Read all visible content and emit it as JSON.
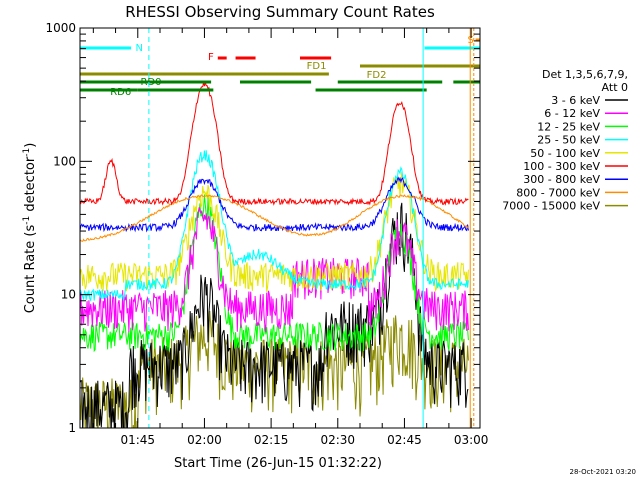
{
  "chart_data": {
    "type": "line",
    "title": "RHESSI Observing Summary Count Rates",
    "xlabel": "Start Time (26-Jun-15 01:32:22)",
    "ylabel_main": "Count Rate (s",
    "ylabel_sup1": "-1",
    "ylabel_mid": " detector",
    "ylabel_sup2": "-1",
    "ylabel_end": ")",
    "y_scale": "log",
    "ylim": [
      1,
      1000
    ],
    "xlim_min": [
      0,
      90
    ],
    "x_ticks": [
      {
        "t": 13,
        "label": "01:45"
      },
      {
        "t": 28,
        "label": "02:00"
      },
      {
        "t": 43,
        "label": "02:15"
      },
      {
        "t": 58,
        "label": "02:30"
      },
      {
        "t": 73,
        "label": "02:45"
      },
      {
        "t": 88,
        "label": "03:00"
      }
    ],
    "y_ticks": [
      {
        "v": 1,
        "label": "1"
      },
      {
        "v": 10,
        "label": "10"
      },
      {
        "v": 100,
        "label": "100"
      },
      {
        "v": 1000,
        "label": "1000"
      }
    ],
    "legend_header": [
      "Det 1,3,5,6,7,9,",
      "Att 0"
    ],
    "series": [
      {
        "name": "3 - 6 keV",
        "color": "#000000"
      },
      {
        "name": "6 - 12 keV",
        "color": "#ff00ff"
      },
      {
        "name": "12 - 25 keV",
        "color": "#00ff00"
      },
      {
        "name": "25 - 50 keV",
        "color": "#00ffff"
      },
      {
        "name": "50 - 100 keV",
        "color": "#e6e600"
      },
      {
        "name": "100 - 300 keV",
        "color": "#ff0000"
      },
      {
        "name": "300 - 800 keV",
        "color": "#0000ff"
      },
      {
        "name": "800 - 7000 keV",
        "color": "#ff8c00"
      },
      {
        "name": "7000 - 15000 keV",
        "color": "#8b8b00"
      }
    ],
    "flags": [
      {
        "label": "N",
        "color": "#00ffff"
      },
      {
        "label": "F",
        "color": "#ff0000"
      },
      {
        "label": "FD1",
        "color": "#8b8b00"
      },
      {
        "label": "FD2",
        "color": "#8b8b00"
      },
      {
        "label": "RD0",
        "color": "#008000"
      },
      {
        "label": "RD6",
        "color": "#008000"
      },
      {
        "label": "S",
        "color": "#ff8c00"
      }
    ],
    "footer_date": "28-Oct-2021 03:20"
  }
}
